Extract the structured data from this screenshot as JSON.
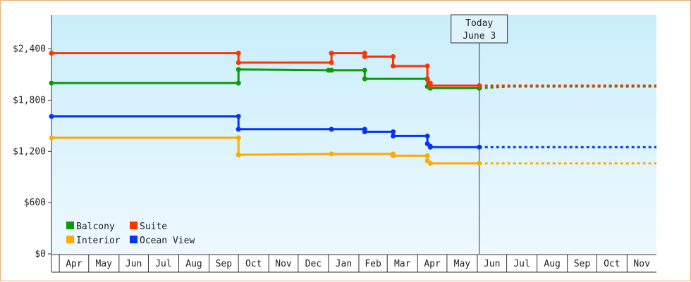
{
  "chart_data": {
    "type": "line",
    "step": true,
    "y_axis": {
      "min": 0,
      "max": 2800,
      "ticks": [
        {
          "value": 0,
          "label": "$0"
        },
        {
          "value": 600,
          "label": "$600"
        },
        {
          "value": 1200,
          "label": "$1,200"
        },
        {
          "value": 1800,
          "label": "$1,800"
        },
        {
          "value": 2400,
          "label": "$2,400"
        }
      ]
    },
    "x_axis": {
      "min": "2023-03-24",
      "max": "2024-12-01",
      "months": [
        {
          "start": "2023-04-01",
          "end": "2023-05-01",
          "label": "Apr"
        },
        {
          "start": "2023-05-01",
          "end": "2023-06-01",
          "label": "May"
        },
        {
          "start": "2023-06-01",
          "end": "2023-07-01",
          "label": "Jun"
        },
        {
          "start": "2023-07-01",
          "end": "2023-08-01",
          "label": "Jul"
        },
        {
          "start": "2023-08-01",
          "end": "2023-09-01",
          "label": "Aug"
        },
        {
          "start": "2023-09-01",
          "end": "2023-10-01",
          "label": "Sep"
        },
        {
          "start": "2023-10-01",
          "end": "2023-11-01",
          "label": "Oct"
        },
        {
          "start": "2023-11-01",
          "end": "2023-12-01",
          "label": "Nov"
        },
        {
          "start": "2023-12-01",
          "end": "2024-01-01",
          "label": "Dec"
        },
        {
          "start": "2024-01-01",
          "end": "2024-02-01",
          "label": "Jan"
        },
        {
          "start": "2024-02-01",
          "end": "2024-03-01",
          "label": "Feb"
        },
        {
          "start": "2024-03-01",
          "end": "2024-04-01",
          "label": "Mar"
        },
        {
          "start": "2024-04-01",
          "end": "2024-05-01",
          "label": "Apr"
        },
        {
          "start": "2024-05-01",
          "end": "2024-06-01",
          "label": "May"
        },
        {
          "start": "2024-06-01",
          "end": "2024-07-01",
          "label": "Jun"
        },
        {
          "start": "2024-07-01",
          "end": "2024-08-01",
          "label": "Jul"
        },
        {
          "start": "2024-08-01",
          "end": "2024-09-01",
          "label": "Aug"
        },
        {
          "start": "2024-09-01",
          "end": "2024-10-01",
          "label": "Sep"
        },
        {
          "start": "2024-10-01",
          "end": "2024-11-01",
          "label": "Oct"
        },
        {
          "start": "2024-11-01",
          "end": "2024-12-01",
          "label": "Nov"
        }
      ]
    },
    "today": {
      "date": "2024-06-03",
      "line1": "Today",
      "line2": "June 3"
    },
    "projection_end": "2024-12-01",
    "grid": false,
    "background": {
      "top": "#c9eefb",
      "bottom": "#eef9ff"
    },
    "legend_position": "bottom-left",
    "series": [
      {
        "name": "Balcony",
        "color": "#0a9a0a",
        "points": [
          [
            "2023-03-24",
            2000
          ],
          [
            "2023-10-01",
            2000
          ],
          [
            "2023-10-01",
            2160
          ],
          [
            "2024-01-01",
            2150
          ],
          [
            "2024-01-04",
            2150
          ],
          [
            "2024-02-07",
            2150
          ],
          [
            "2024-02-07",
            2050
          ],
          [
            "2024-04-11",
            2050
          ],
          [
            "2024-04-11",
            1960
          ],
          [
            "2024-04-14",
            1940
          ],
          [
            "2024-06-03",
            1940
          ]
        ],
        "projection_value": 1960
      },
      {
        "name": "Suite",
        "color": "#ff3300",
        "points": [
          [
            "2023-03-24",
            2350
          ],
          [
            "2023-10-01",
            2350
          ],
          [
            "2023-10-01",
            2240
          ],
          [
            "2024-01-04",
            2240
          ],
          [
            "2024-01-04",
            2350
          ],
          [
            "2024-02-07",
            2350
          ],
          [
            "2024-02-07",
            2310
          ],
          [
            "2024-03-07",
            2310
          ],
          [
            "2024-03-07",
            2200
          ],
          [
            "2024-04-11",
            2200
          ],
          [
            "2024-04-11",
            2040
          ],
          [
            "2024-04-14",
            2000
          ],
          [
            "2024-04-14",
            1970
          ],
          [
            "2024-06-03",
            1970
          ]
        ],
        "projection_value": 1970
      },
      {
        "name": "Interior",
        "color": "#ffaa00",
        "points": [
          [
            "2023-03-24",
            1360
          ],
          [
            "2023-10-01",
            1360
          ],
          [
            "2023-10-01",
            1160
          ],
          [
            "2024-01-04",
            1170
          ],
          [
            "2024-03-07",
            1170
          ],
          [
            "2024-03-07",
            1150
          ],
          [
            "2024-04-11",
            1150
          ],
          [
            "2024-04-11",
            1090
          ],
          [
            "2024-04-14",
            1060
          ],
          [
            "2024-06-03",
            1060
          ]
        ],
        "projection_value": 1060
      },
      {
        "name": "Ocean View",
        "color": "#0033ff",
        "points": [
          [
            "2023-03-24",
            1610
          ],
          [
            "2023-10-01",
            1610
          ],
          [
            "2023-10-01",
            1460
          ],
          [
            "2024-01-04",
            1460
          ],
          [
            "2024-02-07",
            1460
          ],
          [
            "2024-02-07",
            1430
          ],
          [
            "2024-03-07",
            1430
          ],
          [
            "2024-03-07",
            1380
          ],
          [
            "2024-04-11",
            1380
          ],
          [
            "2024-04-11",
            1290
          ],
          [
            "2024-04-14",
            1260
          ],
          [
            "2024-04-14",
            1250
          ],
          [
            "2024-06-03",
            1250
          ]
        ],
        "projection_value": 1250
      }
    ]
  }
}
